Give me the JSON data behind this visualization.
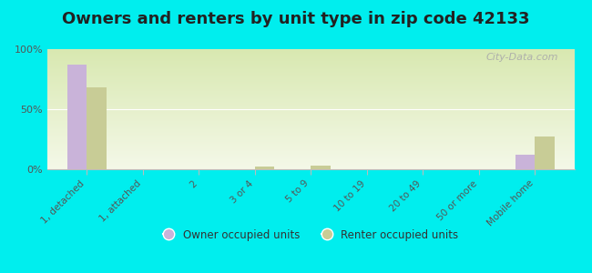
{
  "title": "Owners and renters by unit type in zip code 42133",
  "categories": [
    "1, detached",
    "1, attached",
    "2",
    "3 or 4",
    "5 to 9",
    "10 to 19",
    "20 to 49",
    "50 or more",
    "Mobile home"
  ],
  "owner_values": [
    87,
    0,
    0,
    0,
    0,
    0,
    0,
    0,
    12
  ],
  "renter_values": [
    68,
    0,
    0,
    2,
    3,
    0,
    0,
    0,
    27
  ],
  "owner_color": "#c9b3d9",
  "renter_color": "#c8cc96",
  "background_color": "#00eeee",
  "plot_bg_color_top": "#d8e8b0",
  "plot_bg_color_bottom": "#f4f8e8",
  "ylim": [
    0,
    100
  ],
  "yticks": [
    0,
    50,
    100
  ],
  "ytick_labels": [
    "0%",
    "50%",
    "100%"
  ],
  "bar_width": 0.35,
  "legend_owner": "Owner occupied units",
  "legend_renter": "Renter occupied units",
  "title_fontsize": 13,
  "watermark": "City-Data.com"
}
